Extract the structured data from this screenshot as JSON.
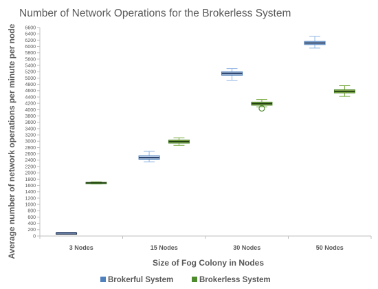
{
  "chart_data": {
    "type": "box",
    "title": "Number of Network Operations for the Brokerless System",
    "xlabel": "Size of Fog Colony in Nodes",
    "ylabel": "Average number of network operations per minute per node",
    "categories": [
      "3 Nodes",
      "15 Nodes",
      "30 Nodes",
      "50 Nodes"
    ],
    "ylim": [
      0,
      6600
    ],
    "ytick_step": 200,
    "grid": false,
    "legend_position": "bottom",
    "series": [
      {
        "name": "Brokerful System",
        "color": "#4f81bd",
        "boxes": [
          {
            "category": "3 Nodes",
            "min": 100,
            "q1": 100,
            "median": 100,
            "q3": 100,
            "max": 100,
            "outliers": []
          },
          {
            "category": "15 Nodes",
            "min": 2350,
            "q1": 2430,
            "median": 2480,
            "q3": 2540,
            "max": 2680,
            "outliers": []
          },
          {
            "category": "30 Nodes",
            "min": 4930,
            "q1": 5090,
            "median": 5150,
            "q3": 5200,
            "max": 5300,
            "outliers": []
          },
          {
            "category": "50 Nodes",
            "min": 5950,
            "q1": 6060,
            "median": 6110,
            "q3": 6160,
            "max": 6320,
            "outliers": []
          }
        ]
      },
      {
        "name": "Brokerless System",
        "color": "#4e8a2e",
        "boxes": [
          {
            "category": "3 Nodes",
            "min": 1650,
            "q1": 1665,
            "median": 1685,
            "q3": 1700,
            "max": 1715,
            "outliers": []
          },
          {
            "category": "15 Nodes",
            "min": 2870,
            "q1": 2940,
            "median": 2990,
            "q3": 3040,
            "max": 3110,
            "outliers": []
          },
          {
            "category": "30 Nodes",
            "min": 4090,
            "q1": 4140,
            "median": 4190,
            "q3": 4240,
            "max": 4320,
            "outliers": [
              4040
            ]
          },
          {
            "category": "50 Nodes",
            "min": 4420,
            "q1": 4530,
            "median": 4580,
            "q3": 4630,
            "max": 4760,
            "outliers": []
          }
        ]
      }
    ]
  }
}
